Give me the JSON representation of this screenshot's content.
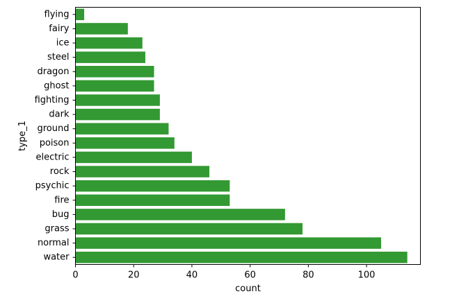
{
  "chart_data": {
    "type": "bar",
    "orientation": "horizontal",
    "categories": [
      "flying",
      "fairy",
      "ice",
      "steel",
      "dragon",
      "ghost",
      "fighting",
      "dark",
      "ground",
      "poison",
      "electric",
      "rock",
      "psychic",
      "fire",
      "bug",
      "grass",
      "normal",
      "water"
    ],
    "values": [
      3,
      18,
      23,
      24,
      27,
      27,
      29,
      29,
      32,
      34,
      40,
      46,
      53,
      53,
      72,
      78,
      105,
      114
    ],
    "xlabel": "count",
    "ylabel": "type_1",
    "xlim": [
      0,
      118.5
    ],
    "xticks": [
      0,
      20,
      40,
      60,
      80,
      100
    ],
    "bar_color": "#339933",
    "grid": false
  }
}
